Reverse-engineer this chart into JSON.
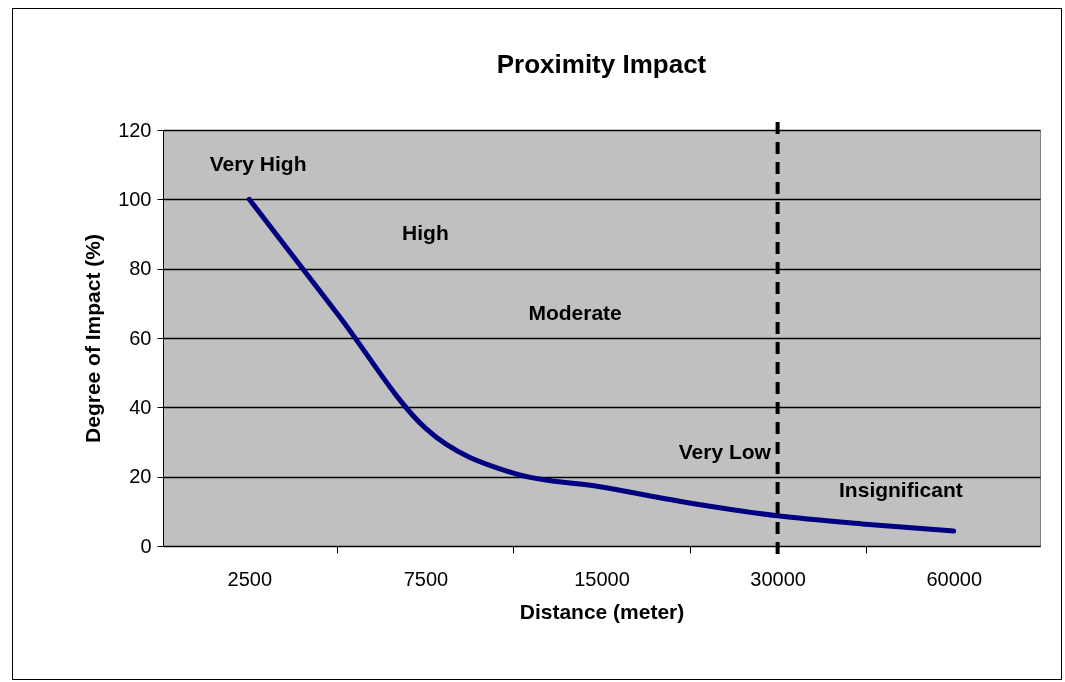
{
  "chart_data": {
    "type": "line",
    "title": "Proximity Impact",
    "xlabel": "Distance (meter)",
    "ylabel": "Degree of Impact (%)",
    "categories": [
      "2500",
      null,
      "7500",
      null,
      "15000",
      null,
      "30000",
      null,
      "60000"
    ],
    "series": [
      {
        "color": "#000080",
        "values": [
          100,
          67,
          34,
          21,
          17,
          12.4,
          8.7,
          6.3,
          4.3
        ]
      }
    ],
    "ylim": [
      0,
      120
    ],
    "yticks": [
      0,
      20,
      40,
      60,
      80,
      100,
      120
    ],
    "grid": "y",
    "marker": "none",
    "line_style": "solid",
    "ref_lines": [
      {
        "axis": "x",
        "value": "30000",
        "color": "#000000",
        "line_style": "dashed"
      }
    ],
    "annotations": [
      "Very High",
      "High",
      "Moderate",
      "Very Low",
      "Insignificant"
    ]
  }
}
